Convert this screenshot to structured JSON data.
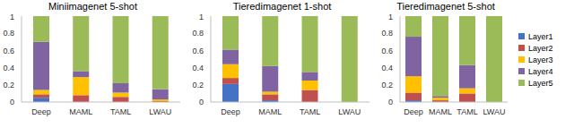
{
  "chart_data": [
    {
      "type": "bar",
      "title": "Miniimagenet  5-shot",
      "stacked": true,
      "grid": false,
      "categories": [
        "Deep",
        "MAML",
        "TAML",
        "LWAU"
      ],
      "ylim": [
        0,
        1
      ],
      "yticks": [
        0,
        0.2,
        0.4,
        0.6,
        0.8,
        1
      ],
      "series": [
        {
          "name": "Layer1",
          "color": "#4472c4",
          "values": [
            0.05,
            0,
            0,
            0
          ]
        },
        {
          "name": "Layer2",
          "color": "#c0504d",
          "values": [
            0.04,
            0.08,
            0.06,
            0.01
          ]
        },
        {
          "name": "Layer3",
          "color": "#ffc000",
          "values": [
            0.05,
            0.21,
            0.05,
            0.02
          ]
        },
        {
          "name": "Layer4",
          "color": "#8064a2",
          "values": [
            0.56,
            0.07,
            0.11,
            0.12
          ]
        },
        {
          "name": "Layer5",
          "color": "#9bbb59",
          "values": [
            0.3,
            0.64,
            0.78,
            0.85
          ]
        }
      ]
    },
    {
      "type": "bar",
      "title": "Tieredimagenet  1-shot",
      "stacked": true,
      "grid": false,
      "categories": [
        "Deep",
        "MAML",
        "TAML",
        "LWAU"
      ],
      "ylim": [
        0,
        1
      ],
      "yticks": [
        0,
        0.2,
        0.4,
        0.6,
        0.8,
        1
      ],
      "series": [
        {
          "name": "Layer1",
          "color": "#4472c4",
          "values": [
            0.21,
            0.02,
            0,
            0
          ]
        },
        {
          "name": "Layer2",
          "color": "#c0504d",
          "values": [
            0.07,
            0.07,
            0.14,
            0
          ]
        },
        {
          "name": "Layer3",
          "color": "#ffc000",
          "values": [
            0.16,
            0.03,
            0.11,
            0
          ]
        },
        {
          "name": "Layer4",
          "color": "#8064a2",
          "values": [
            0.17,
            0.3,
            0.1,
            0
          ]
        },
        {
          "name": "Layer5",
          "color": "#9bbb59",
          "values": [
            0.39,
            0.58,
            0.65,
            1
          ]
        }
      ]
    },
    {
      "type": "bar",
      "title": "Tieredimagenet  5-shot",
      "stacked": true,
      "grid": false,
      "legend": "right",
      "categories": [
        "Deep",
        "MAML",
        "TAML",
        "LWAU"
      ],
      "ylim": [
        0,
        1
      ],
      "yticks": [
        0,
        0.2,
        0.4,
        0.6,
        0.8,
        1
      ],
      "series": [
        {
          "name": "Layer1",
          "color": "#4472c4",
          "values": [
            0.02,
            0,
            0,
            0
          ]
        },
        {
          "name": "Layer2",
          "color": "#c0504d",
          "values": [
            0.09,
            0.02,
            0.1,
            0
          ]
        },
        {
          "name": "Layer3",
          "color": "#ffc000",
          "values": [
            0.19,
            0.03,
            0.06,
            0
          ]
        },
        {
          "name": "Layer4",
          "color": "#8064a2",
          "values": [
            0.46,
            0.02,
            0.27,
            0
          ]
        },
        {
          "name": "Layer5",
          "color": "#9bbb59",
          "values": [
            0.24,
            0.93,
            0.57,
            1
          ]
        }
      ]
    }
  ]
}
